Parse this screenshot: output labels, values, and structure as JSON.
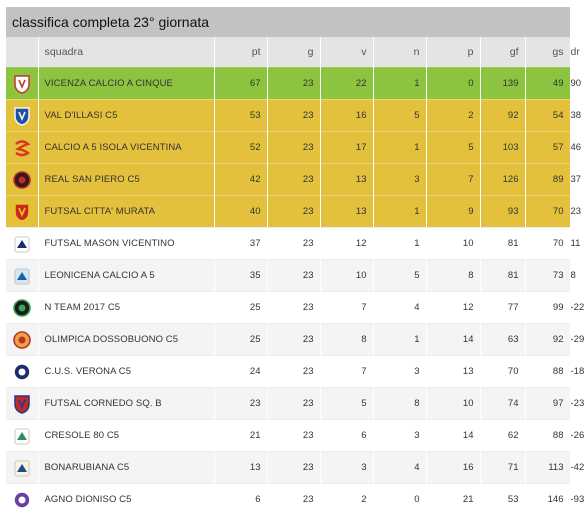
{
  "title": "classifica completa 23° giornata",
  "columns": {
    "team": "squadra",
    "pt": "pt",
    "g": "g",
    "v": "v",
    "n": "n",
    "p": "p",
    "gf": "gf",
    "gs": "gs",
    "dr": "dr"
  },
  "colors": {
    "promotion": "#8cc43f",
    "playoff": "#e3c13c",
    "header_bg": "#e4e4e4",
    "title_bg": "#c2c2c2"
  },
  "rows": [
    {
      "team": "VICENZA CALCIO A CINQUE",
      "pt": "67",
      "g": "23",
      "v": "22",
      "n": "1",
      "p": "0",
      "gf": "139",
      "gs": "49",
      "dr": "90",
      "logo": "vicenza-logo"
    },
    {
      "team": "VAL D'ILLASI C5",
      "pt": "53",
      "g": "23",
      "v": "16",
      "n": "5",
      "p": "2",
      "gf": "92",
      "gs": "54",
      "dr": "38",
      "logo": "val-dillasi-logo"
    },
    {
      "team": "CALCIO A 5 ISOLA VICENTINA",
      "pt": "52",
      "g": "23",
      "v": "17",
      "n": "1",
      "p": "5",
      "gf": "103",
      "gs": "57",
      "dr": "46",
      "logo": "isola-vicentina-logo"
    },
    {
      "team": "REAL SAN PIERO C5",
      "pt": "42",
      "g": "23",
      "v": "13",
      "n": "3",
      "p": "7",
      "gf": "126",
      "gs": "89",
      "dr": "37",
      "logo": "real-san-piero-logo"
    },
    {
      "team": "FUTSAL CITTA' MURATA",
      "pt": "40",
      "g": "23",
      "v": "13",
      "n": "1",
      "p": "9",
      "gf": "93",
      "gs": "70",
      "dr": "23",
      "logo": "citta-murata-logo"
    },
    {
      "team": "FUTSAL MASON VICENTINO",
      "pt": "37",
      "g": "23",
      "v": "12",
      "n": "1",
      "p": "10",
      "gf": "81",
      "gs": "70",
      "dr": "11",
      "logo": "mason-vicentino-logo"
    },
    {
      "team": "LEONICENA CALCIO A 5",
      "pt": "35",
      "g": "23",
      "v": "10",
      "n": "5",
      "p": "8",
      "gf": "81",
      "gs": "73",
      "dr": "8",
      "logo": "leonicena-logo"
    },
    {
      "team": "N TEAM 2017 C5",
      "pt": "25",
      "g": "23",
      "v": "7",
      "n": "4",
      "p": "12",
      "gf": "77",
      "gs": "99",
      "dr": "-22",
      "logo": "n-team-logo"
    },
    {
      "team": "OLIMPICA DOSSOBUONO C5",
      "pt": "25",
      "g": "23",
      "v": "8",
      "n": "1",
      "p": "14",
      "gf": "63",
      "gs": "92",
      "dr": "-29",
      "logo": "olimpica-dossobuono-logo"
    },
    {
      "team": "C.U.S. VERONA C5",
      "pt": "24",
      "g": "23",
      "v": "7",
      "n": "3",
      "p": "13",
      "gf": "70",
      "gs": "88",
      "dr": "-18",
      "logo": "cus-verona-logo"
    },
    {
      "team": "FUTSAL CORNEDO Sq. B",
      "pt": "23",
      "g": "23",
      "v": "5",
      "n": "8",
      "p": "10",
      "gf": "74",
      "gs": "97",
      "dr": "-23",
      "logo": "cornedo-logo"
    },
    {
      "team": "CRESOLE 80 C5",
      "pt": "21",
      "g": "23",
      "v": "6",
      "n": "3",
      "p": "14",
      "gf": "62",
      "gs": "88",
      "dr": "-26",
      "logo": "cresole-logo"
    },
    {
      "team": "BONARUBIANA C5",
      "pt": "13",
      "g": "23",
      "v": "3",
      "n": "4",
      "p": "16",
      "gf": "71",
      "gs": "113",
      "dr": "-42",
      "logo": "bonarubiana-logo"
    },
    {
      "team": "AGNO DIONISO C5",
      "pt": "6",
      "g": "23",
      "v": "2",
      "n": "0",
      "p": "21",
      "gf": "53",
      "gs": "146",
      "dr": "-93",
      "logo": "agno-dioniso-logo"
    }
  ]
}
